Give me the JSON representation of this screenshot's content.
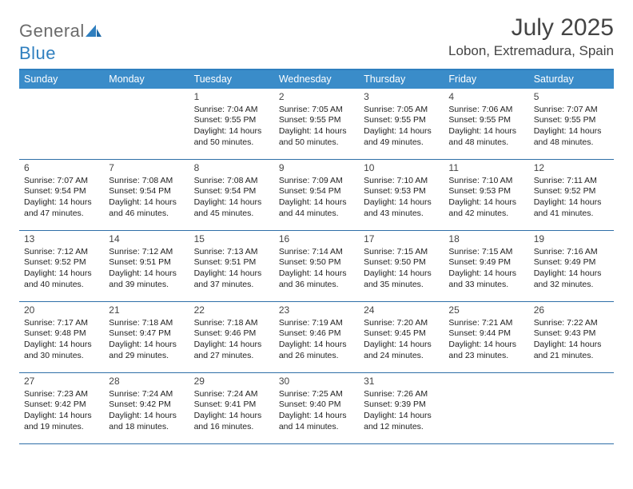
{
  "brand": {
    "part1": "General",
    "part2": "Blue"
  },
  "title": "July 2025",
  "location": "Lobon, Extremadura, Spain",
  "colors": {
    "header_bg": "#3a8cc9",
    "rule": "#2f6fa8",
    "accent": "#2f7fbf"
  },
  "dow": [
    "Sunday",
    "Monday",
    "Tuesday",
    "Wednesday",
    "Thursday",
    "Friday",
    "Saturday"
  ],
  "weeks": [
    [
      null,
      null,
      {
        "n": "1",
        "sr": "7:04 AM",
        "ss": "9:55 PM",
        "dl": "14 hours and 50 minutes."
      },
      {
        "n": "2",
        "sr": "7:05 AM",
        "ss": "9:55 PM",
        "dl": "14 hours and 50 minutes."
      },
      {
        "n": "3",
        "sr": "7:05 AM",
        "ss": "9:55 PM",
        "dl": "14 hours and 49 minutes."
      },
      {
        "n": "4",
        "sr": "7:06 AM",
        "ss": "9:55 PM",
        "dl": "14 hours and 48 minutes."
      },
      {
        "n": "5",
        "sr": "7:07 AM",
        "ss": "9:55 PM",
        "dl": "14 hours and 48 minutes."
      }
    ],
    [
      {
        "n": "6",
        "sr": "7:07 AM",
        "ss": "9:54 PM",
        "dl": "14 hours and 47 minutes."
      },
      {
        "n": "7",
        "sr": "7:08 AM",
        "ss": "9:54 PM",
        "dl": "14 hours and 46 minutes."
      },
      {
        "n": "8",
        "sr": "7:08 AM",
        "ss": "9:54 PM",
        "dl": "14 hours and 45 minutes."
      },
      {
        "n": "9",
        "sr": "7:09 AM",
        "ss": "9:54 PM",
        "dl": "14 hours and 44 minutes."
      },
      {
        "n": "10",
        "sr": "7:10 AM",
        "ss": "9:53 PM",
        "dl": "14 hours and 43 minutes."
      },
      {
        "n": "11",
        "sr": "7:10 AM",
        "ss": "9:53 PM",
        "dl": "14 hours and 42 minutes."
      },
      {
        "n": "12",
        "sr": "7:11 AM",
        "ss": "9:52 PM",
        "dl": "14 hours and 41 minutes."
      }
    ],
    [
      {
        "n": "13",
        "sr": "7:12 AM",
        "ss": "9:52 PM",
        "dl": "14 hours and 40 minutes."
      },
      {
        "n": "14",
        "sr": "7:12 AM",
        "ss": "9:51 PM",
        "dl": "14 hours and 39 minutes."
      },
      {
        "n": "15",
        "sr": "7:13 AM",
        "ss": "9:51 PM",
        "dl": "14 hours and 37 minutes."
      },
      {
        "n": "16",
        "sr": "7:14 AM",
        "ss": "9:50 PM",
        "dl": "14 hours and 36 minutes."
      },
      {
        "n": "17",
        "sr": "7:15 AM",
        "ss": "9:50 PM",
        "dl": "14 hours and 35 minutes."
      },
      {
        "n": "18",
        "sr": "7:15 AM",
        "ss": "9:49 PM",
        "dl": "14 hours and 33 minutes."
      },
      {
        "n": "19",
        "sr": "7:16 AM",
        "ss": "9:49 PM",
        "dl": "14 hours and 32 minutes."
      }
    ],
    [
      {
        "n": "20",
        "sr": "7:17 AM",
        "ss": "9:48 PM",
        "dl": "14 hours and 30 minutes."
      },
      {
        "n": "21",
        "sr": "7:18 AM",
        "ss": "9:47 PM",
        "dl": "14 hours and 29 minutes."
      },
      {
        "n": "22",
        "sr": "7:18 AM",
        "ss": "9:46 PM",
        "dl": "14 hours and 27 minutes."
      },
      {
        "n": "23",
        "sr": "7:19 AM",
        "ss": "9:46 PM",
        "dl": "14 hours and 26 minutes."
      },
      {
        "n": "24",
        "sr": "7:20 AM",
        "ss": "9:45 PM",
        "dl": "14 hours and 24 minutes."
      },
      {
        "n": "25",
        "sr": "7:21 AM",
        "ss": "9:44 PM",
        "dl": "14 hours and 23 minutes."
      },
      {
        "n": "26",
        "sr": "7:22 AM",
        "ss": "9:43 PM",
        "dl": "14 hours and 21 minutes."
      }
    ],
    [
      {
        "n": "27",
        "sr": "7:23 AM",
        "ss": "9:42 PM",
        "dl": "14 hours and 19 minutes."
      },
      {
        "n": "28",
        "sr": "7:24 AM",
        "ss": "9:42 PM",
        "dl": "14 hours and 18 minutes."
      },
      {
        "n": "29",
        "sr": "7:24 AM",
        "ss": "9:41 PM",
        "dl": "14 hours and 16 minutes."
      },
      {
        "n": "30",
        "sr": "7:25 AM",
        "ss": "9:40 PM",
        "dl": "14 hours and 14 minutes."
      },
      {
        "n": "31",
        "sr": "7:26 AM",
        "ss": "9:39 PM",
        "dl": "14 hours and 12 minutes."
      },
      null,
      null
    ]
  ],
  "labels": {
    "sunrise": "Sunrise: ",
    "sunset": "Sunset: ",
    "daylight": "Daylight: "
  }
}
